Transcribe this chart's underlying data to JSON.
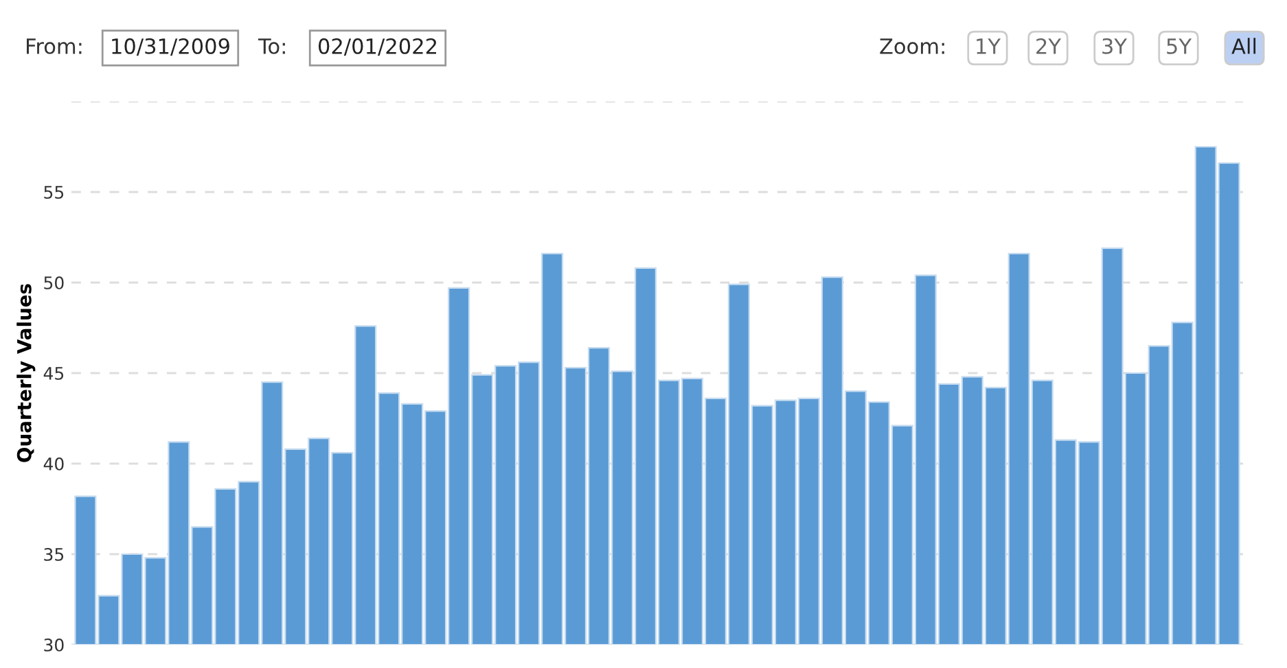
{
  "chart_data": {
    "type": "bar",
    "ylabel": "Quarterly Values",
    "categories": [
      null,
      null,
      null,
      null,
      null,
      null,
      null,
      null,
      null,
      null,
      null,
      null,
      null,
      null,
      null,
      null,
      null,
      null,
      null,
      null,
      null,
      null,
      null,
      null,
      null,
      null,
      null,
      null,
      null,
      null,
      null,
      null,
      null,
      null,
      null,
      null,
      null,
      null,
      null,
      null,
      null,
      null,
      null,
      null,
      null,
      null,
      null,
      null,
      null,
      null
    ],
    "values": [
      38.2,
      32.7,
      35.0,
      34.8,
      41.2,
      36.5,
      38.6,
      39.0,
      44.5,
      40.8,
      41.4,
      40.6,
      47.6,
      43.9,
      43.3,
      42.9,
      49.7,
      44.9,
      45.4,
      45.6,
      51.6,
      45.3,
      46.4,
      45.1,
      50.8,
      44.6,
      44.7,
      43.6,
      49.9,
      43.2,
      43.5,
      43.6,
      50.3,
      44.0,
      43.4,
      42.1,
      50.4,
      44.4,
      44.8,
      44.2,
      51.6,
      44.6,
      41.3,
      41.2,
      51.9,
      45.0,
      46.5,
      47.8,
      57.5,
      56.6
    ],
    "color": "#5b9bd5",
    "ylim": [
      30,
      60
    ],
    "yticks": [
      30,
      35,
      40,
      45,
      50,
      55,
      {
        "value": 60,
        "label": null
      }
    ],
    "grid": "y",
    "annotations": [
      "From:",
      "10/31/2009",
      "To:",
      "02/01/2022",
      "Zoom:",
      "1Y",
      "2Y",
      "3Y",
      "5Y",
      "All"
    ]
  }
}
